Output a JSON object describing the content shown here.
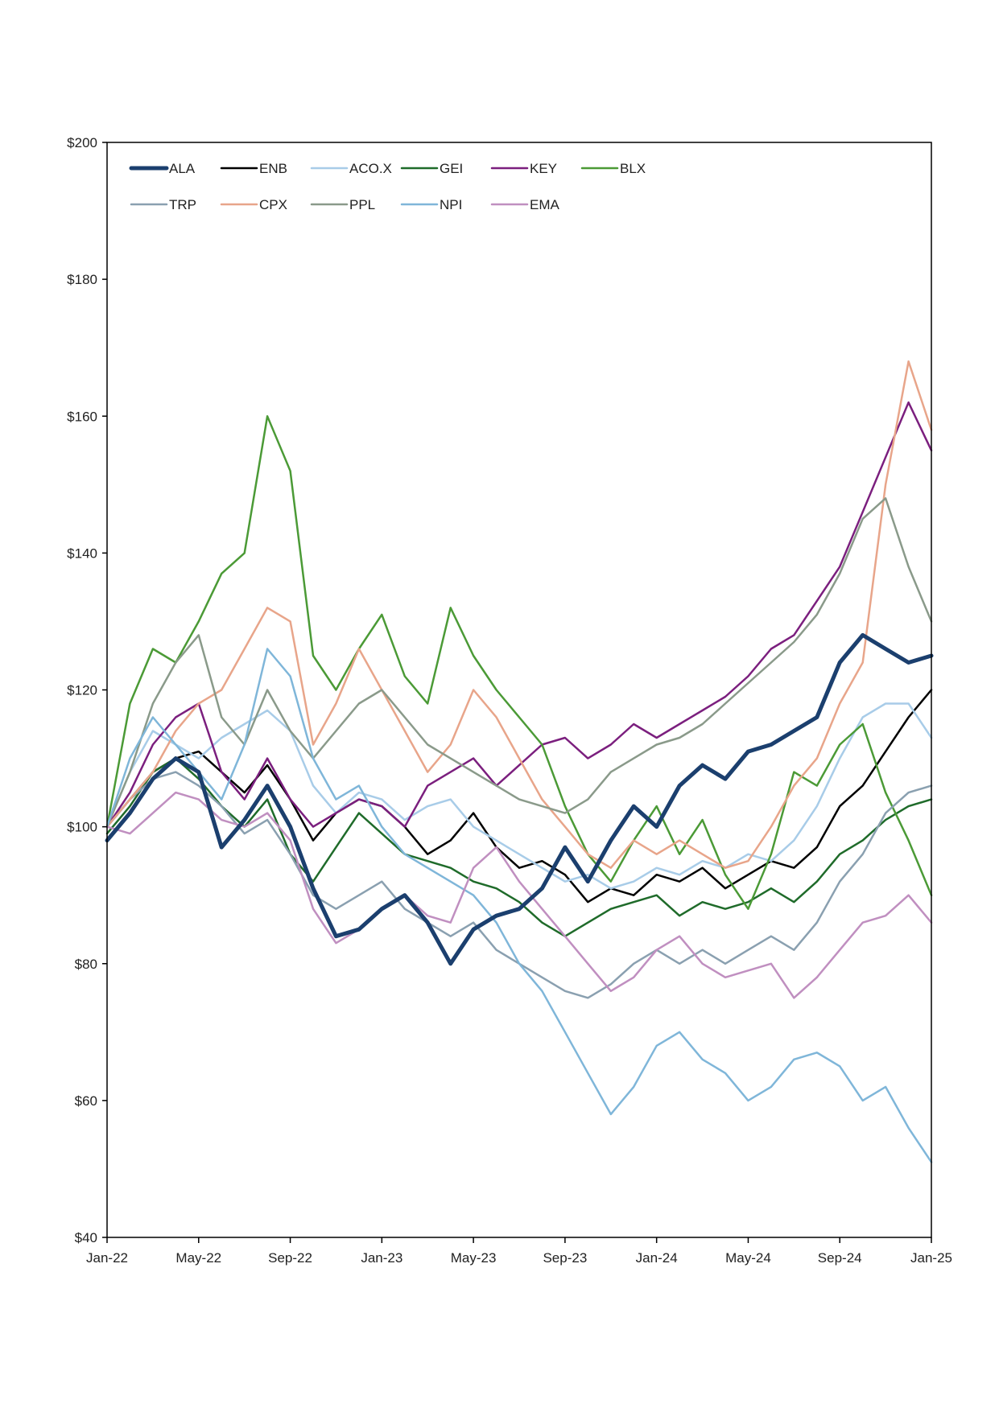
{
  "chart_data": {
    "type": "line",
    "title": "",
    "xlabel": "",
    "ylabel": "",
    "x_range": [
      "2022-01",
      "2025-01"
    ],
    "ylim": [
      40,
      200
    ],
    "y_ticks": [
      {
        "value": 40,
        "label": "$40"
      },
      {
        "value": 60,
        "label": "$60"
      },
      {
        "value": 80,
        "label": "$80"
      },
      {
        "value": 100,
        "label": "$100"
      },
      {
        "value": 120,
        "label": "$120"
      },
      {
        "value": 140,
        "label": "$140"
      },
      {
        "value": 160,
        "label": "$160"
      },
      {
        "value": 180,
        "label": "$180"
      },
      {
        "value": 200,
        "label": "$200"
      }
    ],
    "x_ticks": [
      {
        "value": "2022-01",
        "label": "Jan-22"
      },
      {
        "value": "2022-05",
        "label": "May-22"
      },
      {
        "value": "2022-09",
        "label": "Sep-22"
      },
      {
        "value": "2023-01",
        "label": "Jan-23"
      },
      {
        "value": "2023-05",
        "label": "May-23"
      },
      {
        "value": "2023-09",
        "label": "Sep-23"
      },
      {
        "value": "2024-01",
        "label": "Jan-24"
      },
      {
        "value": "2024-05",
        "label": "May-24"
      },
      {
        "value": "2024-09",
        "label": "Sep-24"
      },
      {
        "value": "2025-01",
        "label": "Jan-25"
      }
    ],
    "grid": false,
    "legend_position": "top-left",
    "series": [
      {
        "name": "ALA",
        "color": "#1b3f6e",
        "width": 5,
        "x": [
          "2022-01",
          "2022-02",
          "2022-03",
          "2022-04",
          "2022-05",
          "2022-06",
          "2022-07",
          "2022-08",
          "2022-09",
          "2022-10",
          "2022-11",
          "2022-12",
          "2023-01",
          "2023-02",
          "2023-03",
          "2023-04",
          "2023-05",
          "2023-06",
          "2023-07",
          "2023-08",
          "2023-09",
          "2023-10",
          "2023-11",
          "2023-12",
          "2024-01",
          "2024-02",
          "2024-03",
          "2024-04",
          "2024-05",
          "2024-06",
          "2024-07",
          "2024-08",
          "2024-09",
          "2024-10",
          "2024-11",
          "2024-12",
          "2025-01"
        ],
        "values": [
          98,
          102,
          107,
          110,
          108,
          97,
          101,
          106,
          100,
          91,
          84,
          85,
          88,
          90,
          86,
          80,
          85,
          87,
          88,
          91,
          97,
          92,
          98,
          103,
          100,
          106,
          109,
          107,
          111,
          112,
          114,
          116,
          124,
          128,
          126,
          124,
          125
        ]
      },
      {
        "name": "ENB",
        "color": "#000000",
        "width": 2.5,
        "x": [
          "2022-01",
          "2022-02",
          "2022-03",
          "2022-04",
          "2022-05",
          "2022-06",
          "2022-07",
          "2022-08",
          "2022-09",
          "2022-10",
          "2022-11",
          "2022-12",
          "2023-01",
          "2023-02",
          "2023-03",
          "2023-04",
          "2023-05",
          "2023-06",
          "2023-07",
          "2023-08",
          "2023-09",
          "2023-10",
          "2023-11",
          "2023-12",
          "2024-01",
          "2024-02",
          "2024-03",
          "2024-04",
          "2024-05",
          "2024-06",
          "2024-07",
          "2024-08",
          "2024-09",
          "2024-10",
          "2024-11",
          "2024-12",
          "2025-01"
        ],
        "values": [
          100,
          104,
          108,
          110,
          111,
          108,
          105,
          109,
          104,
          98,
          102,
          104,
          103,
          100,
          96,
          98,
          102,
          97,
          94,
          95,
          93,
          89,
          91,
          90,
          93,
          92,
          94,
          91,
          93,
          95,
          94,
          97,
          103,
          106,
          111,
          116,
          120
        ]
      },
      {
        "name": "ACO.X",
        "color": "#a8cce8",
        "width": 2.5,
        "x": [
          "2022-01",
          "2022-02",
          "2022-03",
          "2022-04",
          "2022-05",
          "2022-06",
          "2022-07",
          "2022-08",
          "2022-09",
          "2022-10",
          "2022-11",
          "2022-12",
          "2023-01",
          "2023-02",
          "2023-03",
          "2023-04",
          "2023-05",
          "2023-06",
          "2023-07",
          "2023-08",
          "2023-09",
          "2023-10",
          "2023-11",
          "2023-12",
          "2024-01",
          "2024-02",
          "2024-03",
          "2024-04",
          "2024-05",
          "2024-06",
          "2024-07",
          "2024-08",
          "2024-09",
          "2024-10",
          "2024-11",
          "2024-12",
          "2025-01"
        ],
        "values": [
          100,
          108,
          114,
          112,
          110,
          113,
          115,
          117,
          114,
          106,
          102,
          105,
          104,
          101,
          103,
          104,
          100,
          98,
          96,
          94,
          92,
          93,
          91,
          92,
          94,
          93,
          95,
          94,
          96,
          95,
          98,
          103,
          110,
          116,
          118,
          118,
          113
        ]
      },
      {
        "name": "GEI",
        "color": "#1f6b2a",
        "width": 2.5,
        "x": [
          "2022-01",
          "2022-02",
          "2022-03",
          "2022-04",
          "2022-05",
          "2022-06",
          "2022-07",
          "2022-08",
          "2022-09",
          "2022-10",
          "2022-11",
          "2022-12",
          "2023-01",
          "2023-02",
          "2023-03",
          "2023-04",
          "2023-05",
          "2023-06",
          "2023-07",
          "2023-08",
          "2023-09",
          "2023-10",
          "2023-11",
          "2023-12",
          "2024-01",
          "2024-02",
          "2024-03",
          "2024-04",
          "2024-05",
          "2024-06",
          "2024-07",
          "2024-08",
          "2024-09",
          "2024-10",
          "2024-11",
          "2024-12",
          "2025-01"
        ],
        "values": [
          99,
          103,
          108,
          110,
          107,
          103,
          100,
          104,
          96,
          92,
          97,
          102,
          99,
          96,
          95,
          94,
          92,
          91,
          89,
          86,
          84,
          86,
          88,
          89,
          90,
          87,
          89,
          88,
          89,
          91,
          89,
          92,
          96,
          98,
          101,
          103,
          104
        ]
      },
      {
        "name": "KEY",
        "color": "#7b1f7e",
        "width": 2.5,
        "x": [
          "2022-01",
          "2022-02",
          "2022-03",
          "2022-04",
          "2022-05",
          "2022-06",
          "2022-07",
          "2022-08",
          "2022-09",
          "2022-10",
          "2022-11",
          "2022-12",
          "2023-01",
          "2023-02",
          "2023-03",
          "2023-04",
          "2023-05",
          "2023-06",
          "2023-07",
          "2023-08",
          "2023-09",
          "2023-10",
          "2023-11",
          "2023-12",
          "2024-01",
          "2024-02",
          "2024-03",
          "2024-04",
          "2024-05",
          "2024-06",
          "2024-07",
          "2024-08",
          "2024-09",
          "2024-10",
          "2024-11",
          "2024-12",
          "2025-01"
        ],
        "values": [
          100,
          105,
          112,
          116,
          118,
          108,
          104,
          110,
          104,
          100,
          102,
          104,
          103,
          100,
          106,
          108,
          110,
          106,
          109,
          112,
          113,
          110,
          112,
          115,
          113,
          115,
          117,
          119,
          122,
          126,
          128,
          133,
          138,
          146,
          154,
          162,
          155
        ]
      },
      {
        "name": "BLX",
        "color": "#4b9a36",
        "width": 2.5,
        "x": [
          "2022-01",
          "2022-02",
          "2022-03",
          "2022-04",
          "2022-05",
          "2022-06",
          "2022-07",
          "2022-08",
          "2022-09",
          "2022-10",
          "2022-11",
          "2022-12",
          "2023-01",
          "2023-02",
          "2023-03",
          "2023-04",
          "2023-05",
          "2023-06",
          "2023-07",
          "2023-08",
          "2023-09",
          "2023-10",
          "2023-11",
          "2023-12",
          "2024-01",
          "2024-02",
          "2024-03",
          "2024-04",
          "2024-05",
          "2024-06",
          "2024-07",
          "2024-08",
          "2024-09",
          "2024-10",
          "2024-11",
          "2024-12",
          "2025-01"
        ],
        "values": [
          100,
          118,
          126,
          124,
          130,
          137,
          140,
          160,
          152,
          125,
          120,
          126,
          131,
          122,
          118,
          132,
          125,
          120,
          116,
          112,
          103,
          96,
          92,
          98,
          103,
          96,
          101,
          93,
          88,
          96,
          108,
          106,
          112,
          115,
          105,
          98,
          90
        ]
      },
      {
        "name": "TRP",
        "color": "#8aa0b0",
        "width": 2.5,
        "x": [
          "2022-01",
          "2022-02",
          "2022-03",
          "2022-04",
          "2022-05",
          "2022-06",
          "2022-07",
          "2022-08",
          "2022-09",
          "2022-10",
          "2022-11",
          "2022-12",
          "2023-01",
          "2023-02",
          "2023-03",
          "2023-04",
          "2023-05",
          "2023-06",
          "2023-07",
          "2023-08",
          "2023-09",
          "2023-10",
          "2023-11",
          "2023-12",
          "2024-01",
          "2024-02",
          "2024-03",
          "2024-04",
          "2024-05",
          "2024-06",
          "2024-07",
          "2024-08",
          "2024-09",
          "2024-10",
          "2024-11",
          "2024-12",
          "2025-01"
        ],
        "values": [
          100,
          104,
          107,
          108,
          106,
          103,
          99,
          101,
          96,
          90,
          88,
          90,
          92,
          88,
          86,
          84,
          86,
          82,
          80,
          78,
          76,
          75,
          77,
          80,
          82,
          80,
          82,
          80,
          82,
          84,
          82,
          86,
          92,
          96,
          102,
          105,
          106
        ]
      },
      {
        "name": "CPX",
        "color": "#e8a58a",
        "width": 2.5,
        "x": [
          "2022-01",
          "2022-02",
          "2022-03",
          "2022-04",
          "2022-05",
          "2022-06",
          "2022-07",
          "2022-08",
          "2022-09",
          "2022-10",
          "2022-11",
          "2022-12",
          "2023-01",
          "2023-02",
          "2023-03",
          "2023-04",
          "2023-05",
          "2023-06",
          "2023-07",
          "2023-08",
          "2023-09",
          "2023-10",
          "2023-11",
          "2023-12",
          "2024-01",
          "2024-02",
          "2024-03",
          "2024-04",
          "2024-05",
          "2024-06",
          "2024-07",
          "2024-08",
          "2024-09",
          "2024-10",
          "2024-11",
          "2024-12",
          "2025-01"
        ],
        "values": [
          100,
          104,
          108,
          114,
          118,
          120,
          126,
          132,
          130,
          112,
          118,
          126,
          120,
          114,
          108,
          112,
          120,
          116,
          110,
          104,
          100,
          96,
          94,
          98,
          96,
          98,
          96,
          94,
          95,
          100,
          106,
          110,
          118,
          124,
          150,
          168,
          158
        ]
      },
      {
        "name": "PPL",
        "color": "#8a9a8a",
        "width": 2.5,
        "x": [
          "2022-01",
          "2022-02",
          "2022-03",
          "2022-04",
          "2022-05",
          "2022-06",
          "2022-07",
          "2022-08",
          "2022-09",
          "2022-10",
          "2022-11",
          "2022-12",
          "2023-01",
          "2023-02",
          "2023-03",
          "2023-04",
          "2023-05",
          "2023-06",
          "2023-07",
          "2023-08",
          "2023-09",
          "2023-10",
          "2023-11",
          "2023-12",
          "2024-01",
          "2024-02",
          "2024-03",
          "2024-04",
          "2024-05",
          "2024-06",
          "2024-07",
          "2024-08",
          "2024-09",
          "2024-10",
          "2024-11",
          "2024-12",
          "2025-01"
        ],
        "values": [
          100,
          108,
          118,
          124,
          128,
          116,
          112,
          120,
          114,
          110,
          114,
          118,
          120,
          116,
          112,
          110,
          108,
          106,
          104,
          103,
          102,
          104,
          108,
          110,
          112,
          113,
          115,
          118,
          121,
          124,
          127,
          131,
          137,
          145,
          148,
          138,
          130
        ]
      },
      {
        "name": "NPI",
        "color": "#7fb6d9",
        "width": 2.5,
        "x": [
          "2022-01",
          "2022-02",
          "2022-03",
          "2022-04",
          "2022-05",
          "2022-06",
          "2022-07",
          "2022-08",
          "2022-09",
          "2022-10",
          "2022-11",
          "2022-12",
          "2023-01",
          "2023-02",
          "2023-03",
          "2023-04",
          "2023-05",
          "2023-06",
          "2023-07",
          "2023-08",
          "2023-09",
          "2023-10",
          "2023-11",
          "2023-12",
          "2024-01",
          "2024-02",
          "2024-03",
          "2024-04",
          "2024-05",
          "2024-06",
          "2024-07",
          "2024-08",
          "2024-09",
          "2024-10",
          "2024-11",
          "2024-12",
          "2025-01"
        ],
        "values": [
          100,
          110,
          116,
          112,
          108,
          104,
          112,
          126,
          122,
          110,
          104,
          106,
          100,
          96,
          94,
          92,
          90,
          86,
          80,
          76,
          70,
          64,
          58,
          62,
          68,
          70,
          66,
          64,
          60,
          62,
          66,
          67,
          65,
          60,
          62,
          56,
          51
        ]
      },
      {
        "name": "EMA",
        "color": "#c08fc0",
        "width": 2.5,
        "x": [
          "2022-01",
          "2022-02",
          "2022-03",
          "2022-04",
          "2022-05",
          "2022-06",
          "2022-07",
          "2022-08",
          "2022-09",
          "2022-10",
          "2022-11",
          "2022-12",
          "2023-01",
          "2023-02",
          "2023-03",
          "2023-04",
          "2023-05",
          "2023-06",
          "2023-07",
          "2023-08",
          "2023-09",
          "2023-10",
          "2023-11",
          "2023-12",
          "2024-01",
          "2024-02",
          "2024-03",
          "2024-04",
          "2024-05",
          "2024-06",
          "2024-07",
          "2024-08",
          "2024-09",
          "2024-10",
          "2024-11",
          "2024-12",
          "2025-01"
        ],
        "values": [
          100,
          99,
          102,
          105,
          104,
          101,
          100,
          102,
          98,
          88,
          83,
          85,
          88,
          90,
          87,
          86,
          94,
          97,
          92,
          88,
          84,
          80,
          76,
          78,
          82,
          84,
          80,
          78,
          79,
          80,
          75,
          78,
          82,
          86,
          87,
          90,
          86
        ]
      }
    ]
  }
}
